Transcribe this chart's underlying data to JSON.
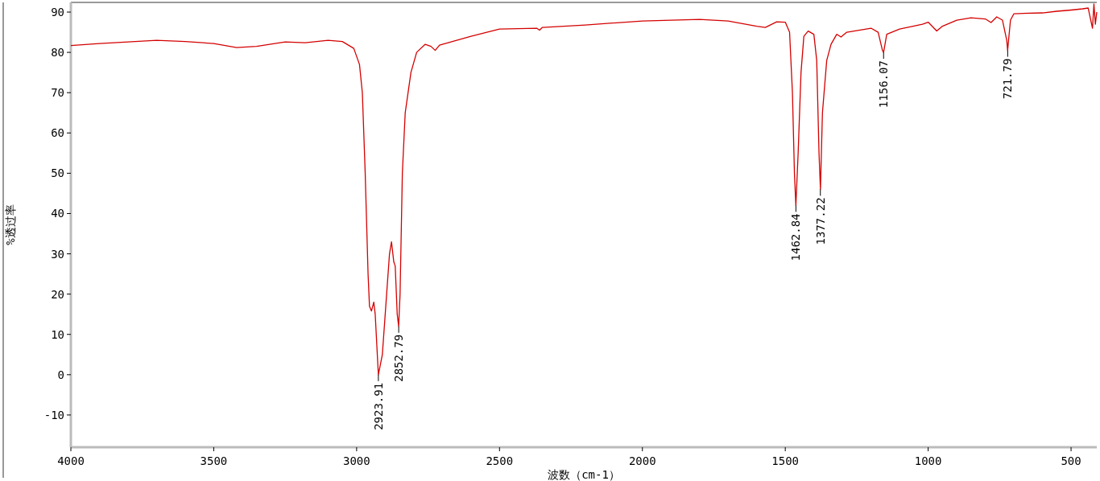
{
  "chart_data": {
    "type": "line",
    "xlabel": "波数（cm-1）",
    "ylabel": "%透过率",
    "xlim": [
      4000,
      410
    ],
    "ylim": [
      -18,
      92.4
    ],
    "xticks": [
      4000,
      3500,
      3000,
      2500,
      2000,
      1500,
      1000,
      500
    ],
    "yticks": [
      -10,
      0,
      10,
      20,
      30,
      40,
      50,
      60,
      70,
      80,
      90
    ],
    "x": [
      4000,
      3900,
      3800,
      3700,
      3600,
      3500,
      3420,
      3350,
      3250,
      3180,
      3100,
      3050,
      3010,
      2990,
      2980,
      2970,
      2960,
      2955,
      2948,
      2940,
      2935,
      2924,
      2910,
      2895,
      2885,
      2878,
      2870,
      2865,
      2858,
      2853,
      2848,
      2840,
      2830,
      2810,
      2790,
      2760,
      2740,
      2725,
      2710,
      2600,
      2500,
      2370,
      2360,
      2350,
      2200,
      2000,
      1800,
      1700,
      1600,
      1570,
      1530,
      1500,
      1485,
      1475,
      1468,
      1463,
      1455,
      1445,
      1435,
      1420,
      1400,
      1390,
      1382,
      1377,
      1370,
      1355,
      1340,
      1320,
      1305,
      1285,
      1200,
      1175,
      1160,
      1156,
      1145,
      1100,
      1020,
      1000,
      970,
      950,
      900,
      850,
      800,
      780,
      760,
      740,
      725,
      722,
      712,
      700,
      600,
      550,
      500,
      460,
      440,
      425,
      420,
      415,
      410
    ],
    "series": [
      {
        "color": "#d40000",
        "values": [
          81.7,
          82.2,
          82.6,
          83.0,
          82.7,
          82.2,
          81.2,
          81.5,
          82.6,
          82.4,
          83.0,
          82.7,
          81.0,
          77,
          70,
          50,
          25,
          17,
          15.8,
          18,
          15,
          0,
          5,
          20,
          30,
          33,
          28,
          27,
          15,
          12,
          20,
          50,
          65,
          75,
          80,
          82,
          81.5,
          80.5,
          81.8,
          84,
          85.8,
          86.0,
          85.5,
          86.2,
          86.8,
          87.8,
          88.2,
          87.8,
          86.5,
          86.2,
          87.6,
          87.5,
          85,
          70,
          50,
          42,
          55,
          75,
          84,
          85.3,
          84.5,
          78,
          55,
          46,
          65,
          78,
          82,
          84.5,
          83.8,
          85.0,
          86.0,
          85,
          80.5,
          80,
          84.5,
          85.8,
          87,
          87.5,
          85.3,
          86.5,
          88,
          88.6,
          88.3,
          87.4,
          88.8,
          88,
          83,
          80.5,
          88,
          89.6,
          89.8,
          90.2,
          90.5,
          90.8,
          91,
          86,
          92,
          87,
          90
        ]
      }
    ],
    "annotations": [
      {
        "text": "2923.91",
        "x": 2923.91,
        "y": 0
      },
      {
        "text": "2852.79",
        "x": 2852.79,
        "y": 12
      },
      {
        "text": "1462.84",
        "x": 1462.84,
        "y": 42
      },
      {
        "text": "1377.22",
        "x": 1377.22,
        "y": 46
      },
      {
        "text": "1156.07",
        "x": 1156.07,
        "y": 80
      },
      {
        "text": "721.79",
        "x": 721.79,
        "y": 80.5
      }
    ]
  }
}
